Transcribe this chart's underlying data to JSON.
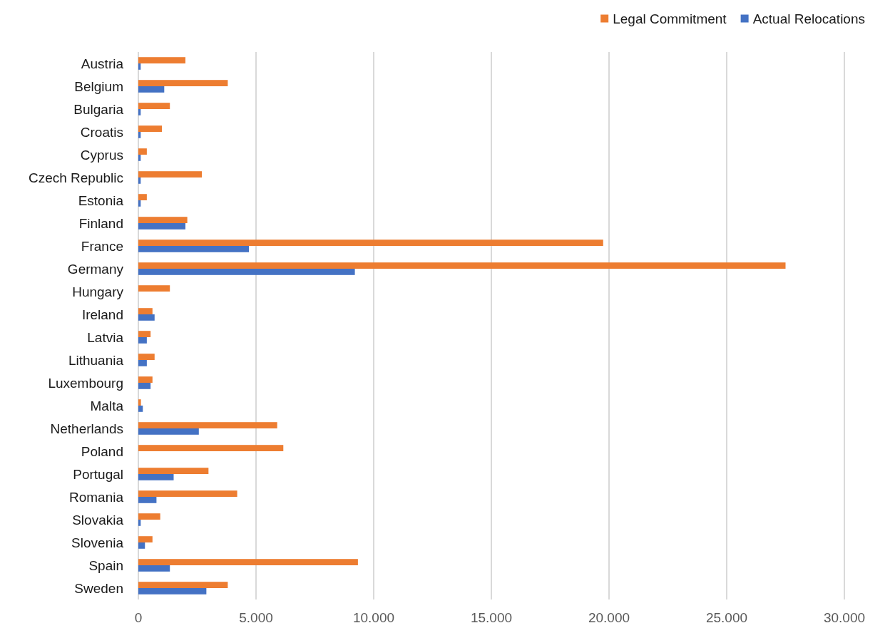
{
  "chart_data": {
    "type": "bar",
    "orientation": "horizontal",
    "categories": [
      "Austria",
      "Belgium",
      "Bulgaria",
      "Croatis",
      "Cyprus",
      "Czech Republic",
      "Estonia",
      "Finland",
      "France",
      "Germany",
      "Hungary",
      "Ireland",
      "Latvia",
      "Lithuania",
      "Luxembourg",
      "Malta",
      "Netherlands",
      "Poland",
      "Portugal",
      "Romania",
      "Slovakia",
      "Slovenia",
      "Spain",
      "Sweden"
    ],
    "series": [
      {
        "name": "Legal Commitment",
        "color": "#ed7d31",
        "values": [
          2000,
          3800,
          1340,
          1000,
          360,
          2700,
          360,
          2080,
          19750,
          27500,
          1340,
          600,
          520,
          690,
          600,
          110,
          5900,
          6160,
          2980,
          4200,
          930,
          600,
          9330,
          3800
        ]
      },
      {
        "name": "Actual Relocations",
        "color": "#4472c4",
        "values": [
          100,
          1100,
          100,
          100,
          100,
          100,
          100,
          2000,
          4700,
          9200,
          null,
          690,
          360,
          360,
          520,
          190,
          2570,
          null,
          1500,
          770,
          100,
          280,
          1340,
          2890
        ]
      }
    ],
    "xlim": [
      0,
      30000
    ],
    "xticks": [
      {
        "value": 0,
        "label": "0"
      },
      {
        "value": 5000,
        "label": "5.000"
      },
      {
        "value": 10000,
        "label": "10.000"
      },
      {
        "value": 15000,
        "label": "15.000"
      },
      {
        "value": 20000,
        "label": "20.000"
      },
      {
        "value": 25000,
        "label": "25.000"
      },
      {
        "value": 30000,
        "label": "30.000"
      }
    ],
    "grid": "x",
    "legend": "top right"
  }
}
